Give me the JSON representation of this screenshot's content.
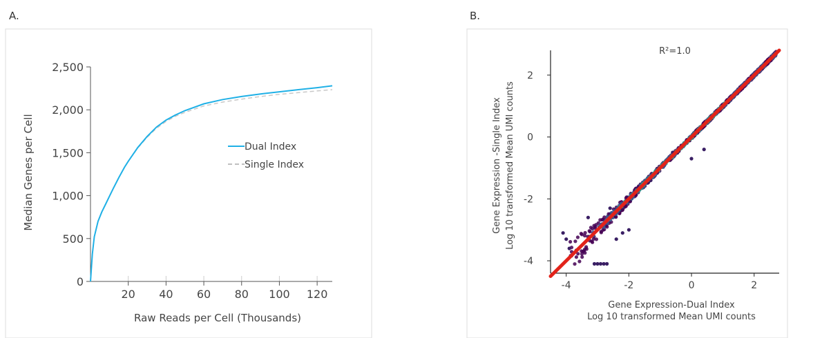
{
  "panels": {
    "a_label": "A.",
    "b_label": "B."
  },
  "colors": {
    "dual": "#1fb0e6",
    "single": "#c8c8c8",
    "axis": "#555555",
    "fit": "#e2231a",
    "frame": "#dddddd"
  },
  "chart_data": [
    {
      "type": "line",
      "title": "",
      "xlabel": "Raw Reads per Cell (Thousands)",
      "ylabel": "Median Genes  per Cell",
      "xlim": [
        0,
        128
      ],
      "ylim": [
        0,
        2500
      ],
      "x_ticks": [
        "20",
        "40",
        "60",
        "80",
        "100",
        "120"
      ],
      "y_ticks": [
        "0",
        "500",
        "1,000",
        "1,500",
        "2,000",
        "2,500"
      ],
      "legend": {
        "placement": "middle-right",
        "entries": [
          "Dual Index",
          "Single Index"
        ]
      },
      "series": [
        {
          "name": "Dual Index",
          "style": "solid",
          "x": [
            0,
            1,
            2,
            4,
            6,
            8,
            10,
            12,
            15,
            18,
            20,
            25,
            30,
            35,
            40,
            45,
            50,
            60,
            70,
            80,
            90,
            100,
            110,
            120,
            128
          ],
          "y": [
            0,
            320,
            520,
            700,
            810,
            900,
            990,
            1080,
            1210,
            1330,
            1400,
            1560,
            1690,
            1800,
            1880,
            1940,
            1990,
            2070,
            2120,
            2155,
            2185,
            2210,
            2235,
            2258,
            2280
          ]
        },
        {
          "name": "Single Index",
          "style": "dashed",
          "x": [
            0,
            1,
            2,
            4,
            6,
            8,
            10,
            12,
            15,
            18,
            20,
            25,
            30,
            35,
            40,
            45,
            50,
            60,
            70,
            80,
            90,
            100,
            110,
            120,
            128
          ],
          "y": [
            0,
            320,
            520,
            700,
            810,
            900,
            990,
            1080,
            1210,
            1330,
            1400,
            1555,
            1680,
            1785,
            1865,
            1925,
            1970,
            2045,
            2090,
            2125,
            2155,
            2180,
            2200,
            2220,
            2235
          ]
        }
      ]
    },
    {
      "type": "scatter",
      "title": "",
      "annotation": "R²=1.0",
      "xlabel": "Gene Expression-Dual Index",
      "xlabel2": "Log 10 transformed Mean UMI counts",
      "ylabel": "Gene Expression -Single Index",
      "ylabel2": "Log 10 transformed Mean UMI counts",
      "xlim": [
        -4.5,
        2.8
      ],
      "ylim": [
        -4.4,
        2.8
      ],
      "x_ticks": [
        "-4",
        "-2",
        "0",
        "2"
      ],
      "y_ticks": [
        "-4",
        "-2",
        "0",
        "2"
      ],
      "fit_line": {
        "x": [
          -4.5,
          2.8
        ],
        "y": [
          -4.5,
          2.8
        ]
      },
      "density": "points along y = x colored by density (purple sparse to green/yellow dense)"
    }
  ]
}
